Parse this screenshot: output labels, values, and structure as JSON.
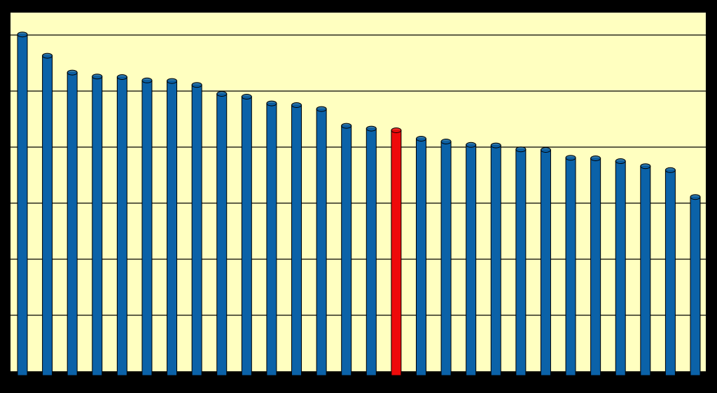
{
  "chart_data": {
    "type": "bar",
    "values": [
      6.01,
      5.63,
      5.33,
      5.26,
      5.25,
      5.19,
      5.18,
      5.11,
      4.95,
      4.9,
      4.78,
      4.75,
      4.68,
      4.38,
      4.33,
      4.3,
      4.15,
      4.1,
      4.04,
      4.03,
      3.96,
      3.95,
      3.81,
      3.8,
      3.75,
      3.66,
      3.59,
      3.11
    ],
    "colors": [
      "#0b62a8",
      "#0b62a8",
      "#0b62a8",
      "#0b62a8",
      "#0b62a8",
      "#0b62a8",
      "#0b62a8",
      "#0b62a8",
      "#0b62a8",
      "#0b62a8",
      "#0b62a8",
      "#0b62a8",
      "#0b62a8",
      "#0b62a8",
      "#0b62a8",
      "#ee0a0a",
      "#0b62a8",
      "#0b62a8",
      "#0b62a8",
      "#0b62a8",
      "#0b62a8",
      "#0b62a8",
      "#0b62a8",
      "#0b62a8",
      "#0b62a8",
      "#0b62a8",
      "#0b62a8",
      "#0b62a8"
    ],
    "ylim": [
      0,
      6.4
    ],
    "yticks": [
      1,
      2,
      3,
      4,
      5,
      6
    ],
    "grid": true
  }
}
